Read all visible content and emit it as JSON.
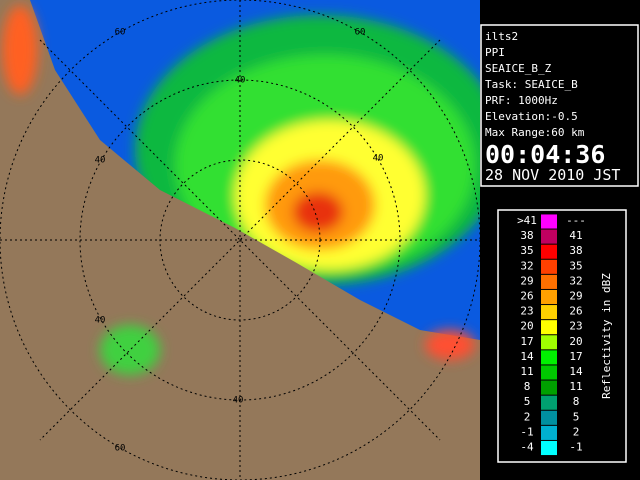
{
  "info": {
    "lines": [
      "ilts2",
      "PPI",
      "SEAICE_B_Z",
      "Task: SEAICE_B",
      "PRF: 1000Hz",
      "Elevation:-0.5",
      "Max Range:60 km"
    ],
    "time": "00:04:36",
    "date": "28 NOV 2010 JST"
  },
  "ring_labels": [
    "60",
    "60",
    "40",
    "40",
    "40",
    "40",
    "40",
    "60"
  ],
  "legend": {
    "title": "Reflectivity in dBZ",
    "rows": [
      {
        "low": ">41",
        "high": "---",
        "color": "#ff00ff"
      },
      {
        "low": "38",
        "high": "41",
        "color": "#c00060"
      },
      {
        "low": "35",
        "high": "38",
        "color": "#ff0000"
      },
      {
        "low": "32",
        "high": "35",
        "color": "#ff4000"
      },
      {
        "low": "29",
        "high": "32",
        "color": "#ff7000"
      },
      {
        "low": "26",
        "high": "29",
        "color": "#ffa000"
      },
      {
        "low": "23",
        "high": "26",
        "color": "#ffd000"
      },
      {
        "low": "20",
        "high": "23",
        "color": "#ffff00"
      },
      {
        "low": "17",
        "high": "20",
        "color": "#a0ff00"
      },
      {
        "low": "14",
        "high": "17",
        "color": "#00f000"
      },
      {
        "low": "11",
        "high": "14",
        "color": "#00c800"
      },
      {
        "low": "8",
        "high": "11",
        "color": "#00a000"
      },
      {
        "low": "5",
        "high": "8",
        "color": "#00a070"
      },
      {
        "low": "2",
        "high": "5",
        "color": "#0090a0"
      },
      {
        "low": "-1",
        "high": "2",
        "color": "#00b0d0"
      },
      {
        "low": "-4",
        "high": "-1",
        "color": "#00ffff"
      }
    ]
  }
}
